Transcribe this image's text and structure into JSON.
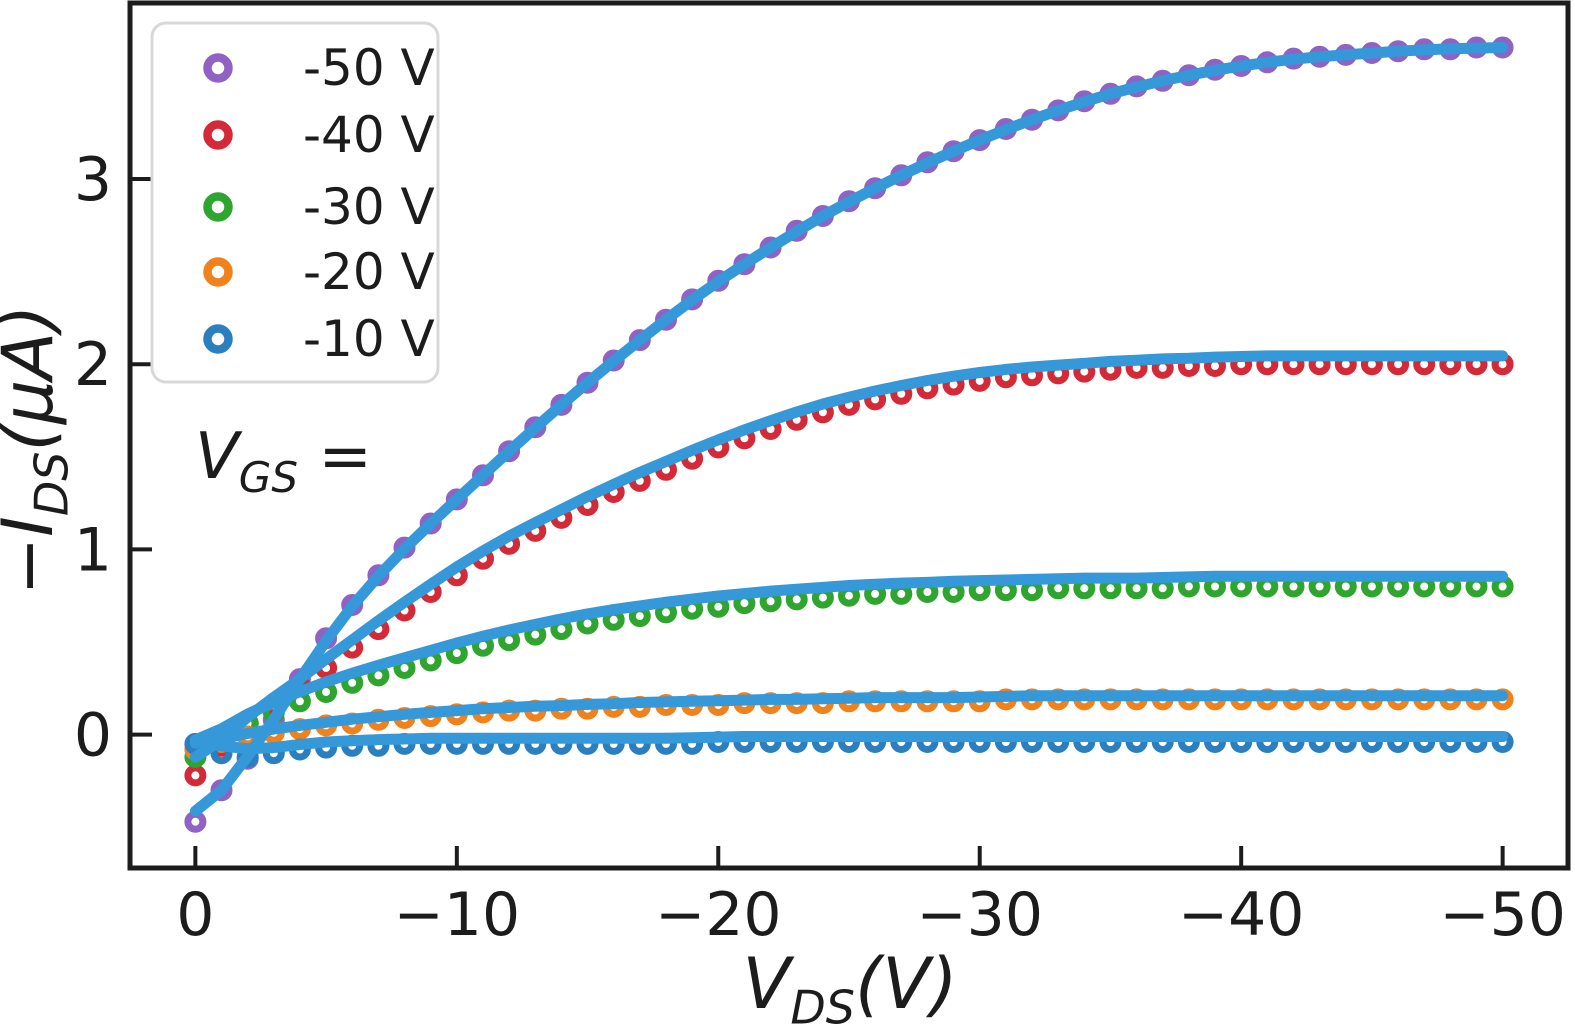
{
  "figure": {
    "description": "Transistor output characteristics: drain current versus drain-source voltage at five gate voltages, with fit lines",
    "annotation_legend_title": {
      "var": "V",
      "sub": "GS",
      "suffix": " ="
    }
  },
  "chart_data": {
    "type": "scatter",
    "title": "",
    "xlabel": {
      "var": "V",
      "sub": "DS",
      "unit": "(V)"
    },
    "ylabel": {
      "minus": "−",
      "var": "I",
      "sub": "DS",
      "unit_open": "(",
      "unit_mu": "μA",
      "unit_close": ")"
    },
    "xlim": [
      2.5,
      -52.5
    ],
    "ylim": [
      -0.72,
      3.95
    ],
    "x_ticks": {
      "values": [
        0,
        -10,
        -20,
        -30,
        -40,
        -50
      ],
      "labels": [
        "0",
        "−10",
        "−20",
        "−30",
        "−40",
        "−50"
      ]
    },
    "y_ticks": {
      "values": [
        0,
        1,
        2,
        3
      ],
      "labels": [
        "0",
        "1",
        "2",
        "3"
      ]
    },
    "grid": false,
    "legend_position": "upper-left",
    "vds_start": 0,
    "vds_step": -1,
    "fit_line_color": "#3598d8",
    "frame_color": "#1c1c1c",
    "legend_border_color": "#d8d8d8",
    "series": [
      {
        "name": "-50 V",
        "vgs": -50,
        "color": "#8f62c4",
        "fit_offset": 0.0,
        "values": [
          -0.47,
          -0.3,
          -0.13,
          0.08,
          0.3,
          0.52,
          0.7,
          0.86,
          1.01,
          1.14,
          1.27,
          1.4,
          1.53,
          1.66,
          1.78,
          1.9,
          2.02,
          2.13,
          2.24,
          2.35,
          2.45,
          2.54,
          2.63,
          2.72,
          2.8,
          2.88,
          2.95,
          3.02,
          3.09,
          3.15,
          3.21,
          3.27,
          3.32,
          3.37,
          3.42,
          3.46,
          3.5,
          3.53,
          3.56,
          3.59,
          3.61,
          3.63,
          3.65,
          3.66,
          3.67,
          3.68,
          3.69,
          3.7,
          3.7,
          3.71,
          3.71
        ]
      },
      {
        "name": "-40 V",
        "vgs": -40,
        "color": "#d42a38",
        "fit_offset": 0.045,
        "values": [
          -0.22,
          -0.06,
          0.06,
          0.15,
          0.26,
          0.36,
          0.47,
          0.57,
          0.67,
          0.77,
          0.86,
          0.95,
          1.03,
          1.1,
          1.17,
          1.24,
          1.31,
          1.37,
          1.43,
          1.49,
          1.55,
          1.6,
          1.65,
          1.7,
          1.74,
          1.78,
          1.81,
          1.84,
          1.87,
          1.89,
          1.91,
          1.93,
          1.94,
          1.95,
          1.96,
          1.97,
          1.98,
          1.98,
          1.99,
          1.99,
          2.0,
          2.0,
          2.0,
          2.0,
          2.0,
          2.0,
          2.0,
          2.0,
          2.0,
          2.0,
          2.0
        ]
      },
      {
        "name": "-30 V",
        "vgs": -30,
        "color": "#2fa42f",
        "fit_offset": 0.055,
        "values": [
          -0.12,
          -0.01,
          0.06,
          0.12,
          0.18,
          0.23,
          0.28,
          0.32,
          0.36,
          0.4,
          0.44,
          0.48,
          0.51,
          0.54,
          0.57,
          0.6,
          0.62,
          0.64,
          0.66,
          0.68,
          0.69,
          0.71,
          0.72,
          0.73,
          0.74,
          0.75,
          0.76,
          0.76,
          0.77,
          0.77,
          0.78,
          0.78,
          0.78,
          0.79,
          0.79,
          0.79,
          0.79,
          0.79,
          0.8,
          0.8,
          0.8,
          0.8,
          0.8,
          0.8,
          0.8,
          0.8,
          0.8,
          0.8,
          0.8,
          0.8,
          0.8
        ]
      },
      {
        "name": "-20 V",
        "vgs": -20,
        "color": "#f0821e",
        "fit_offset": 0.02,
        "values": [
          -0.08,
          -0.04,
          -0.01,
          0.01,
          0.03,
          0.05,
          0.06,
          0.08,
          0.09,
          0.1,
          0.11,
          0.12,
          0.13,
          0.13,
          0.14,
          0.14,
          0.15,
          0.15,
          0.16,
          0.16,
          0.16,
          0.17,
          0.17,
          0.17,
          0.17,
          0.18,
          0.18,
          0.18,
          0.18,
          0.18,
          0.18,
          0.19,
          0.19,
          0.19,
          0.19,
          0.19,
          0.19,
          0.19,
          0.19,
          0.19,
          0.19,
          0.19,
          0.19,
          0.19,
          0.19,
          0.19,
          0.19,
          0.19,
          0.19,
          0.19,
          0.19
        ]
      },
      {
        "name": "-10 V",
        "vgs": -10,
        "color": "#2b7fbe",
        "fit_offset": 0.03,
        "values": [
          -0.05,
          -0.1,
          -0.12,
          -0.1,
          -0.08,
          -0.07,
          -0.06,
          -0.06,
          -0.05,
          -0.05,
          -0.05,
          -0.05,
          -0.05,
          -0.05,
          -0.05,
          -0.05,
          -0.05,
          -0.05,
          -0.05,
          -0.05,
          -0.04,
          -0.04,
          -0.04,
          -0.04,
          -0.04,
          -0.04,
          -0.04,
          -0.04,
          -0.04,
          -0.04,
          -0.04,
          -0.04,
          -0.04,
          -0.04,
          -0.04,
          -0.04,
          -0.04,
          -0.04,
          -0.04,
          -0.04,
          -0.04,
          -0.04,
          -0.04,
          -0.04,
          -0.04,
          -0.04,
          -0.04,
          -0.04,
          -0.04,
          -0.04,
          -0.04
        ]
      }
    ]
  }
}
